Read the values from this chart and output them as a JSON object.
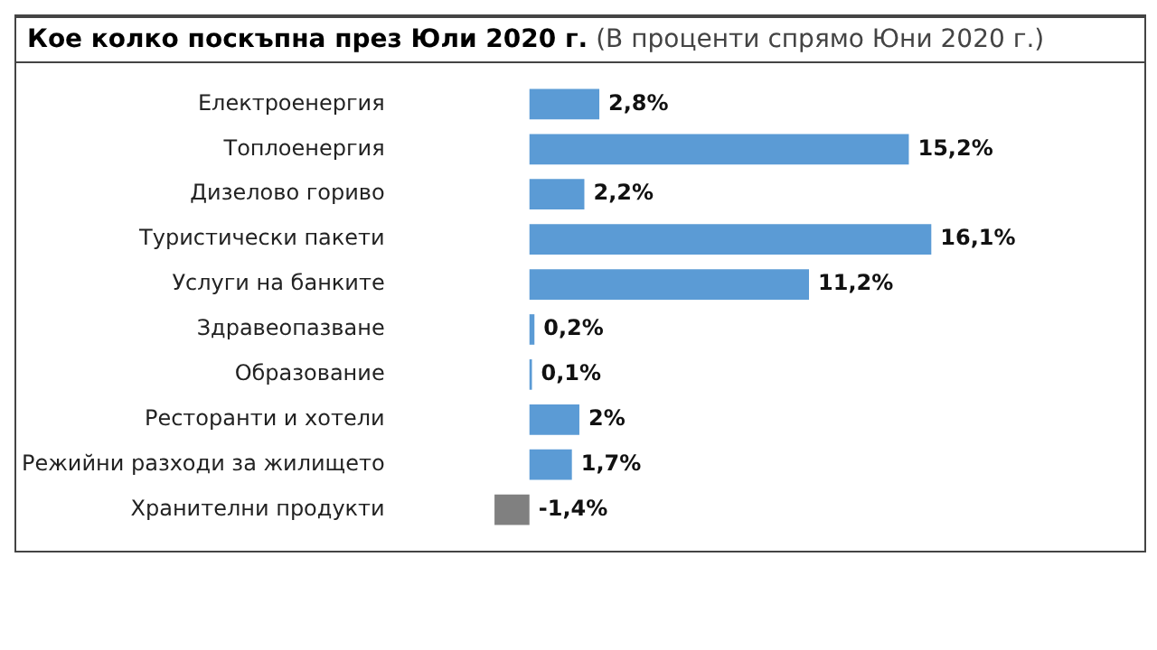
{
  "chart_data": {
    "type": "bar",
    "orientation": "horizontal",
    "title": "Кое колко поскъпна през Юли 2020 г.",
    "subtitle": "(В проценти спрямо Юни 2020 г.)",
    "categories": [
      "Електроенергия",
      "Топлоенергия",
      "Дизелово гориво",
      "Туристически пакети",
      "Услуги на банките",
      "Здравеопазване",
      "Образование",
      "Ресторанти и хотели",
      "Режийни разходи за жилището",
      "Хранителни продукти"
    ],
    "values": [
      2.8,
      15.2,
      2.2,
      16.1,
      11.2,
      0.2,
      0.1,
      2,
      1.7,
      -1.4
    ],
    "colors": [
      "#5b9bd5",
      "#5b9bd5",
      "#5b9bd5",
      "#5b9bd5",
      "#5b9bd5",
      "#5b9bd5",
      "#5b9bd5",
      "#5b9bd5",
      "#5b9bd5",
      "#808080"
    ],
    "value_labels": [
      "2,8%",
      "15,2%",
      "2,2%",
      "16,1%",
      "11,2%",
      "0,2%",
      "0,1%",
      "2%",
      "1,7%",
      "-1,4%"
    ],
    "grid": false,
    "legend": false
  }
}
